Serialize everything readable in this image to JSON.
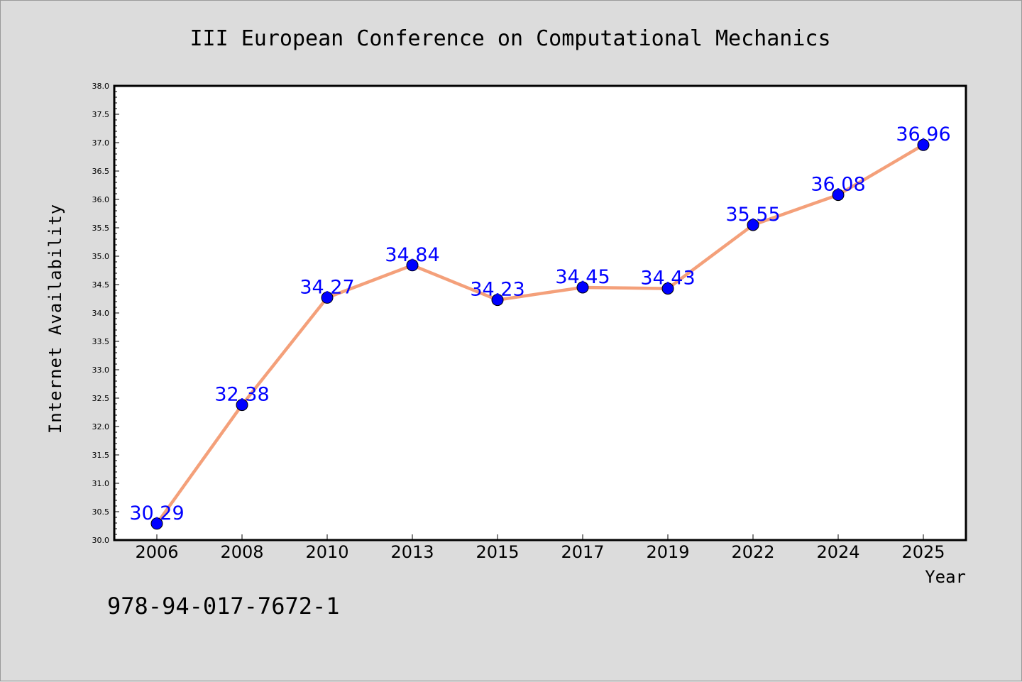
{
  "chart_data": {
    "type": "line",
    "title": "III European Conference on Computational Mechanics",
    "xlabel": "Year",
    "ylabel": "Internet Availability",
    "categories": [
      "2006",
      "2008",
      "2010",
      "2013",
      "2015",
      "2017",
      "2019",
      "2022",
      "2024",
      "2025"
    ],
    "series": [
      {
        "values": [
          30.29,
          32.38,
          34.27,
          34.84,
          34.23,
          34.45,
          34.43,
          35.55,
          36.08,
          36.96
        ],
        "data_labels": [
          "30.29",
          "32.38",
          "34.27",
          "34.84",
          "34.23",
          "34.45",
          "34.43",
          "35.55",
          "36.08",
          "36.96"
        ],
        "line_color": "#f4a07a",
        "marker_color": "#0000ff"
      }
    ],
    "ylim": [
      30.0,
      38.0
    ],
    "yticks": [
      "30.0",
      "30.5",
      "31.0",
      "31.5",
      "32.0",
      "32.5",
      "33.0",
      "33.5",
      "34.0",
      "34.5",
      "35.0",
      "35.5",
      "36.0",
      "36.5",
      "37.0",
      "37.5",
      "38.0"
    ],
    "grid": false,
    "legend": "none"
  },
  "footer": {
    "isbn": "978-94-017-7672-1"
  }
}
